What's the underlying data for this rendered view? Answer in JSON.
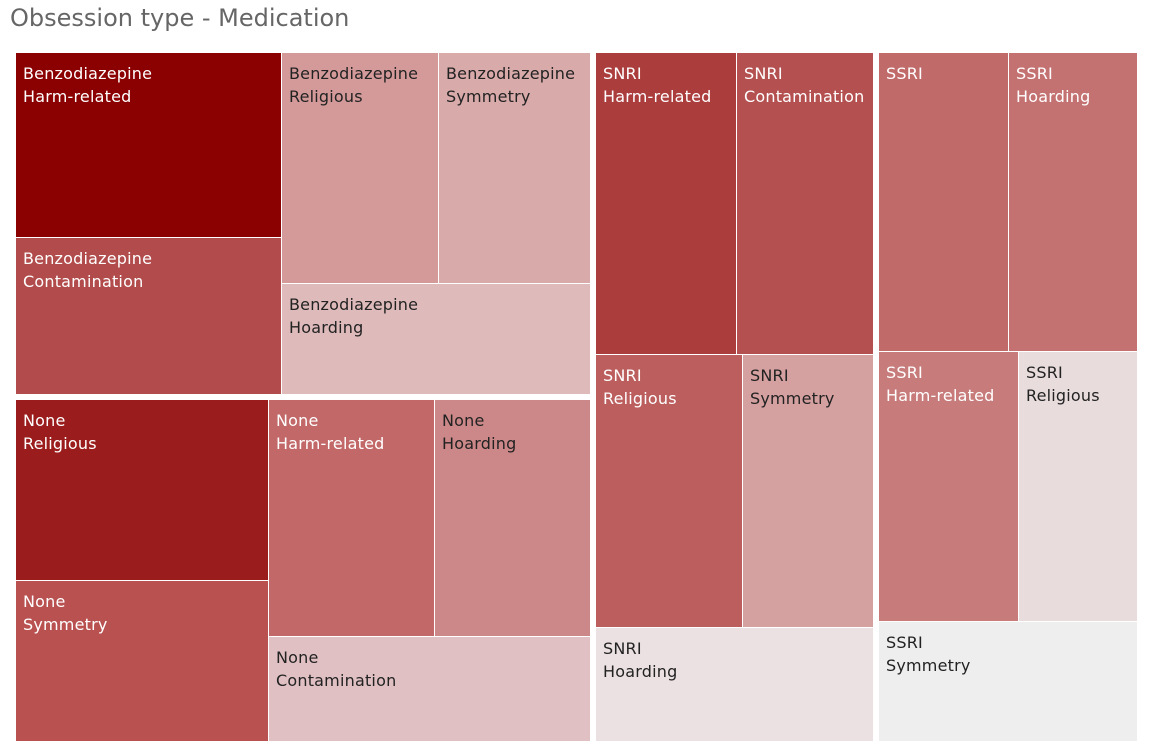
{
  "title": "Obsession type - Medication",
  "chart_data": {
    "type": "treemap",
    "title": "Obsession type - Medication",
    "group_by": [
      "Medication",
      "Obsession type"
    ],
    "groups": [
      {
        "name": "Benzodiazepine",
        "cells": [
          {
            "medication": "Benzodiazepine",
            "obsession": "Harm-related",
            "color": "#8b0000",
            "text_color": "#ffffff"
          },
          {
            "medication": "Benzodiazepine",
            "obsession": "Contamination",
            "color": "#b24c4c",
            "text_color": "#ffffff"
          },
          {
            "medication": "Benzodiazepine",
            "obsession": "Religious",
            "color": "#d49a9a",
            "text_color": "#222222"
          },
          {
            "medication": "Benzodiazepine",
            "obsession": "Symmetry",
            "color": "#d9aaaa",
            "text_color": "#222222"
          },
          {
            "medication": "Benzodiazepine",
            "obsession": "Hoarding",
            "color": "#debaba",
            "text_color": "#222222"
          }
        ]
      },
      {
        "name": "None",
        "cells": [
          {
            "medication": "None",
            "obsession": "Religious",
            "color": "#9b1c1c",
            "text_color": "#ffffff"
          },
          {
            "medication": "None",
            "obsession": "Symmetry",
            "color": "#b95151",
            "text_color": "#ffffff"
          },
          {
            "medication": "None",
            "obsession": "Harm-related",
            "color": "#c26868",
            "text_color": "#ffffff"
          },
          {
            "medication": "None",
            "obsession": "Hoarding",
            "color": "#cc8888",
            "text_color": "#222222"
          },
          {
            "medication": "None",
            "obsession": "Contamination",
            "color": "#e0c0c2",
            "text_color": "#222222"
          }
        ]
      },
      {
        "name": "SNRI",
        "cells": [
          {
            "medication": "SNRI",
            "obsession": "Harm-related",
            "color": "#ab3d3d",
            "text_color": "#ffffff"
          },
          {
            "medication": "SNRI",
            "obsession": "Contamination",
            "color": "#b45050",
            "text_color": "#ffffff"
          },
          {
            "medication": "SNRI",
            "obsession": "Religious",
            "color": "#bc5e5e",
            "text_color": "#ffffff"
          },
          {
            "medication": "SNRI",
            "obsession": "Symmetry",
            "color": "#d5a0a0",
            "text_color": "#222222"
          },
          {
            "medication": "SNRI",
            "obsession": "Hoarding",
            "color": "#ebe1e2",
            "text_color": "#222222"
          }
        ]
      },
      {
        "name": "SSRI",
        "cells": [
          {
            "medication": "SSRI",
            "obsession": "",
            "color": "#c16a6a",
            "text_color": "#ffffff"
          },
          {
            "medication": "SSRI",
            "obsession": "Hoarding",
            "color": "#c47171",
            "text_color": "#ffffff"
          },
          {
            "medication": "SSRI",
            "obsession": "Harm-related",
            "color": "#c87b7b",
            "text_color": "#ffffff"
          },
          {
            "medication": "SSRI",
            "obsession": "Religious",
            "color": "#e9dcdd",
            "text_color": "#222222"
          },
          {
            "medication": "SSRI",
            "obsession": "Symmetry",
            "color": "#efeeef",
            "text_color": "#222222"
          }
        ]
      }
    ]
  }
}
